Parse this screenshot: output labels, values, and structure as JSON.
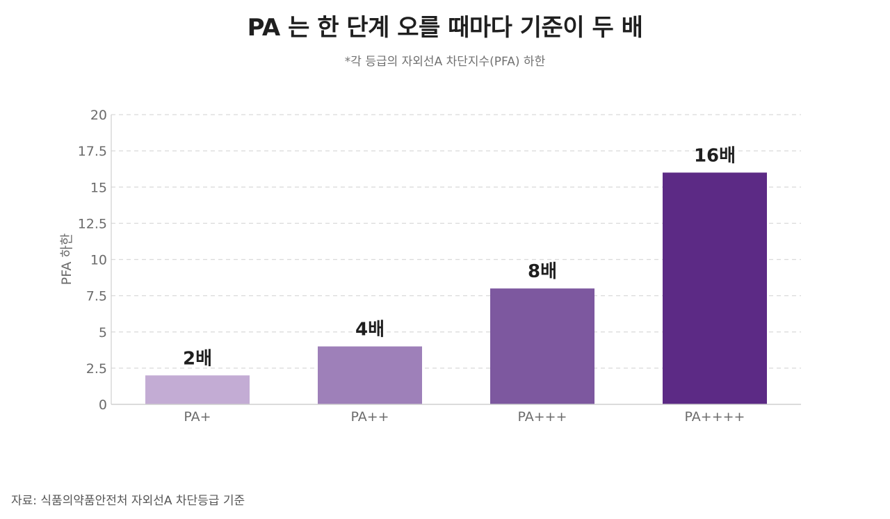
{
  "header": {
    "title": "PA 는 한 단계 오를 때마다 기준이 두 배",
    "subtitle": "*각 등급의 자외선A 차단지수(PFA) 하한"
  },
  "footer": {
    "source": "자료: 식품의약품안전처 자외선A 차단등급 기준"
  },
  "chart_data": {
    "type": "bar",
    "title": "PA 는 한 단계 오를 때마다 기준이 두 배",
    "subtitle": "*각 등급의 자외선A 차단지수(PFA) 하한",
    "xlabel": "",
    "ylabel": "PFA 하한",
    "categories": [
      "PA+",
      "PA++",
      "PA+++",
      "PA++++"
    ],
    "values": [
      2,
      4,
      8,
      16
    ],
    "data_labels": [
      "2배",
      "4배",
      "8배",
      "16배"
    ],
    "bar_colors": [
      "#c3acd4",
      "#9e80b9",
      "#7d589f",
      "#5c2a85"
    ],
    "ylim": [
      0,
      20
    ],
    "yticks": [
      0,
      2.5,
      5,
      7.5,
      10,
      12.5,
      15,
      17.5,
      20
    ],
    "ytick_labels": [
      "0",
      "2.5",
      "5",
      "7.5",
      "10",
      "12.5",
      "15",
      "17.5",
      "20"
    ],
    "grid": true,
    "legend": "none"
  }
}
